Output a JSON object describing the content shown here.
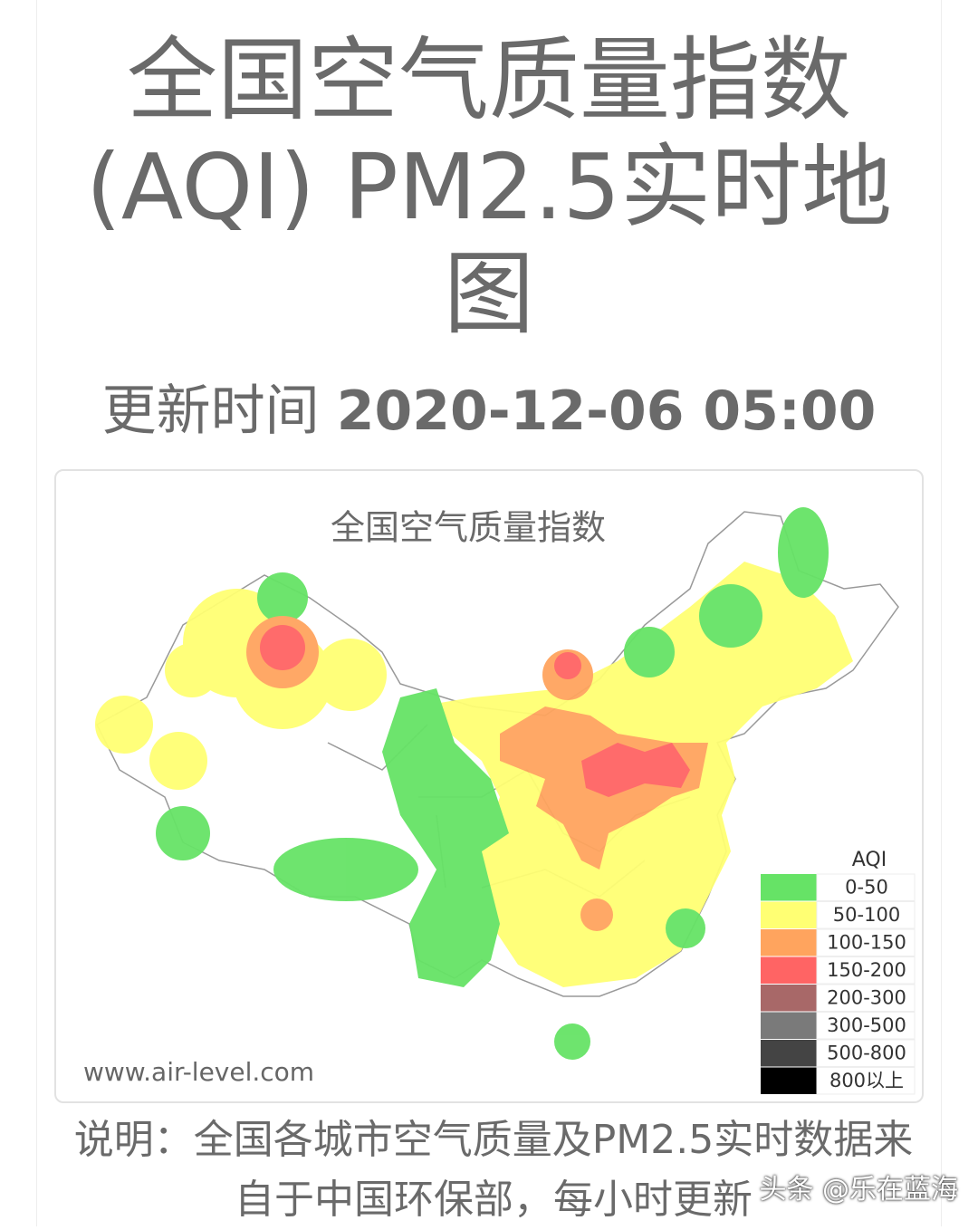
{
  "header": {
    "title": "全国空气质量指数 (AQI) PM2.5实时地图",
    "update_label": "更新时间",
    "update_time": "2020-12-06 05:00"
  },
  "map": {
    "title": "全国空气质量指数",
    "source": "www.air-level.com",
    "legend": {
      "title": "AQI",
      "items": [
        {
          "label": "0-50",
          "color": "#66e366"
        },
        {
          "label": "50-100",
          "color": "#ffff73"
        },
        {
          "label": "100-150",
          "color": "#ffa45e"
        },
        {
          "label": "150-200",
          "color": "#ff6464"
        },
        {
          "label": "200-300",
          "color": "#a86868"
        },
        {
          "label": "300-500",
          "color": "#7a7a7a"
        },
        {
          "label": "500-800",
          "color": "#444444"
        },
        {
          "label": "800以上",
          "color": "#000000"
        }
      ]
    }
  },
  "description": "说明：全国各城市空气质量及PM2.5实时数据来自于中国环保部，每小时更新",
  "watermark": "头条 @乐在蓝海"
}
